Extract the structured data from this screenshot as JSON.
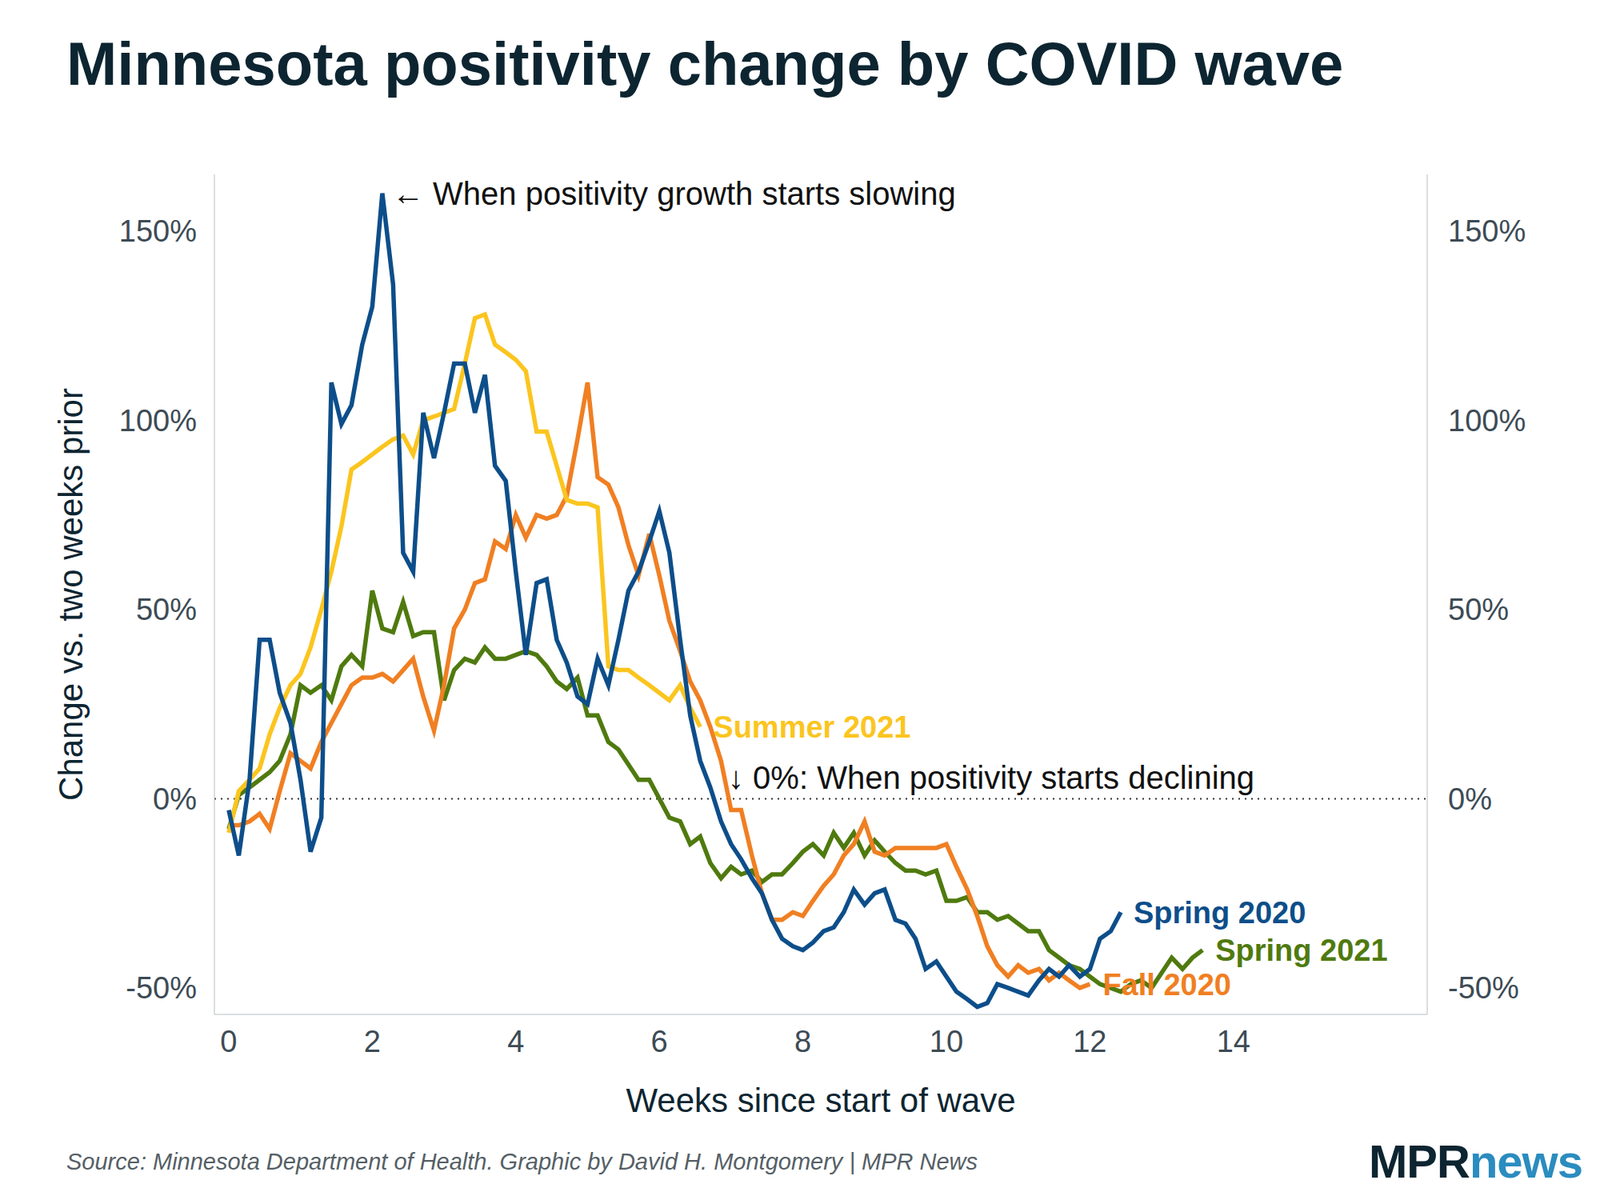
{
  "chart_data": {
    "type": "line",
    "title": "Minnesota positivity change by COVID wave",
    "x_label": "Weeks since start of wave",
    "y_label": "Change vs. two weeks prior",
    "x": [
      0,
      0.14,
      0.29,
      0.43,
      0.57,
      0.71,
      0.86,
      1,
      1.14,
      1.29,
      1.43,
      1.57,
      1.71,
      1.86,
      2,
      2.14,
      2.29,
      2.43,
      2.57,
      2.71,
      2.86,
      3,
      3.14,
      3.29,
      3.43,
      3.57,
      3.71,
      3.86,
      4,
      4.14,
      4.29,
      4.43,
      4.57,
      4.71,
      4.86,
      5,
      5.14,
      5.29,
      5.43,
      5.57,
      5.71,
      5.86,
      6,
      6.14,
      6.29,
      6.43,
      6.57,
      6.71,
      6.86,
      7,
      7.14,
      7.29,
      7.43,
      7.57,
      7.71,
      7.86,
      8,
      8.14,
      8.29,
      8.43,
      8.57,
      8.71,
      8.86,
      9,
      9.14,
      9.29,
      9.43,
      9.57,
      9.71,
      9.86,
      10,
      10.14,
      10.29,
      10.43,
      10.57,
      10.71,
      10.86,
      11,
      11.14,
      11.29,
      11.43,
      11.57,
      11.71,
      11.86,
      12,
      12.14,
      12.29,
      12.43,
      12.57,
      12.71,
      12.86,
      13,
      13.14,
      13.29,
      13.43,
      13.57
    ],
    "xlim": [
      -0.2,
      16.7
    ],
    "xticks": [
      0,
      2,
      4,
      6,
      8,
      10,
      12,
      14
    ],
    "ylim": [
      -57,
      165
    ],
    "yticks": [
      {
        "value": -50,
        "label": "-50%"
      },
      {
        "value": 0,
        "label": "0%"
      },
      {
        "value": 50,
        "label": "50%"
      },
      {
        "value": 100,
        "label": "100%"
      },
      {
        "value": 150,
        "label": "150%"
      }
    ],
    "y2lim": [
      -57,
      165
    ],
    "y2ticks": [
      {
        "value": -50,
        "label": "-50%"
      },
      {
        "value": 0,
        "label": "0%"
      },
      {
        "value": 50,
        "label": "50%"
      },
      {
        "value": 100,
        "label": "100%"
      },
      {
        "value": 150,
        "label": "150%"
      }
    ],
    "grid": false,
    "reference_lines": [
      0
    ],
    "series": [
      {
        "name": "Spring 2021",
        "color": "#4f7a0f",
        "values": [
          -8,
          1,
          3,
          5,
          7,
          10,
          17,
          30,
          28,
          30,
          26,
          35,
          38,
          35,
          55,
          45,
          44,
          52,
          43,
          44,
          44,
          26,
          34,
          37,
          36,
          40,
          37,
          37,
          38,
          39,
          38,
          35,
          31,
          29,
          32,
          22,
          22,
          15,
          13,
          9,
          5,
          5,
          0,
          -5,
          -6,
          -12,
          -10,
          -17,
          -21,
          -18,
          -20,
          -19,
          -22,
          -20,
          -20,
          -17,
          -14,
          -12,
          -15,
          -9,
          -13,
          -9,
          -15,
          -11,
          -14,
          -17,
          -19,
          -19,
          -20,
          -19,
          -27,
          -27,
          -26,
          -30,
          -30,
          -32,
          -31,
          -33,
          -35,
          -35,
          -40,
          -42,
          -44,
          -45,
          -47,
          -49,
          -50,
          -51,
          -49,
          -48,
          -50,
          -46,
          -42,
          -45,
          -42,
          -40
        ]
      },
      {
        "name": "Fall 2020",
        "color": "#f07f22",
        "values": [
          -7,
          -7,
          -6,
          -4,
          -8,
          2,
          12,
          10,
          8,
          15,
          20,
          25,
          30,
          32,
          32,
          33,
          31,
          34,
          37,
          27,
          18,
          30,
          45,
          50,
          57,
          58,
          68,
          66,
          75,
          69,
          75,
          74,
          75,
          80,
          95,
          110,
          85,
          83,
          77,
          67,
          59,
          70,
          59,
          47,
          39,
          31,
          26,
          19,
          10,
          -3,
          -3,
          -15,
          -25,
          -32,
          -32,
          -30,
          -31,
          -27,
          -23,
          -20,
          -15,
          -12,
          -6,
          -14,
          -15,
          -13,
          -13,
          -13,
          -13,
          -13,
          -12,
          -18,
          -24,
          -31,
          -39,
          -44,
          -47,
          -44,
          -46,
          -45,
          -48,
          -46,
          -48,
          -50,
          -49,
          null,
          null,
          null,
          null,
          null,
          null,
          null,
          null,
          null,
          null,
          null
        ]
      },
      {
        "name": "Summer 2021",
        "color": "#fbc51f",
        "values": [
          -9,
          2,
          5,
          8,
          17,
          24,
          30,
          33,
          40,
          50,
          60,
          72,
          87,
          89,
          91,
          93,
          95,
          96,
          91,
          100,
          101,
          102,
          103,
          115,
          127,
          128,
          120,
          118,
          116,
          113,
          97,
          97,
          88,
          79,
          78,
          78,
          77,
          35,
          34,
          34,
          32,
          30,
          28,
          26,
          30,
          24,
          19,
          null,
          null,
          null,
          null,
          null,
          null,
          null,
          null,
          null,
          null,
          null,
          null,
          null,
          null,
          null,
          null,
          null,
          null,
          null,
          null,
          null,
          null,
          null,
          null,
          null,
          null,
          null,
          null,
          null,
          null,
          null,
          null,
          null,
          null,
          null,
          null,
          null,
          null,
          null,
          null,
          null,
          null,
          null,
          null,
          null,
          null,
          null,
          null,
          null
        ]
      },
      {
        "name": "Spring 2020",
        "color": "#0d4e8a",
        "values": [
          -3,
          -15,
          5,
          42,
          42,
          28,
          20,
          5,
          -14,
          -5,
          110,
          99,
          104,
          120,
          130,
          160,
          136,
          65,
          60,
          102,
          90,
          102,
          115,
          115,
          102,
          112,
          88,
          84,
          60,
          38,
          57,
          58,
          42,
          36,
          27,
          25,
          37,
          30,
          42,
          55,
          60,
          68,
          76,
          65,
          42,
          22,
          10,
          3,
          -6,
          -12,
          -16,
          -21,
          -25,
          -32,
          -37,
          -39,
          -40,
          -38,
          -35,
          -34,
          -30,
          -24,
          -28,
          -25,
          -24,
          -32,
          -33,
          -37,
          -45,
          -43,
          -47,
          -51,
          -53,
          -55,
          -54,
          -49,
          -50,
          -51,
          -52,
          -48,
          -45,
          -47,
          -44,
          -47,
          -45,
          -37,
          -35,
          -30,
          null,
          null,
          null,
          null,
          null,
          null,
          null,
          null
        ]
      }
    ],
    "annotations": [
      {
        "text": "← When positivity growth starts slowing"
      },
      {
        "text": "↓ 0%: When positivity starts declining"
      }
    ],
    "source": "Source: Minnesota Department of Health. Graphic by David H. Montgomery | MPR News",
    "logo": [
      "MPR",
      "news"
    ]
  }
}
